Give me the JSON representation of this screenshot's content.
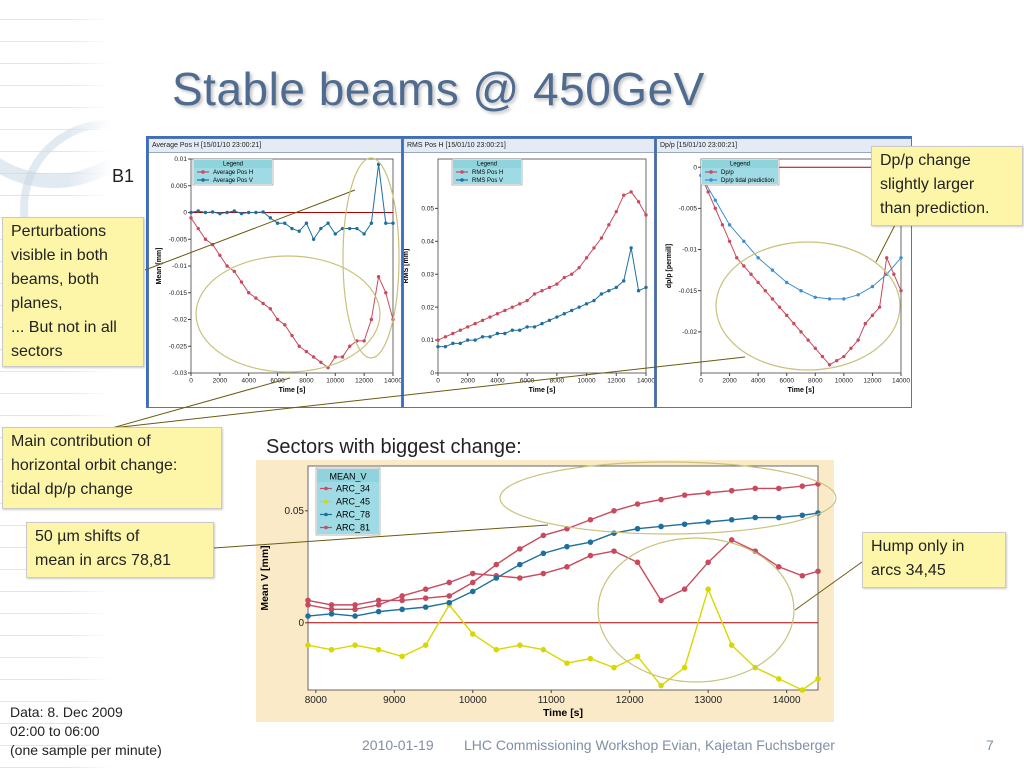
{
  "slide": {
    "title": "Stable beams @ 450GeV",
    "beam_label": "B1",
    "sectors_heading": "Sectors with biggest change:",
    "data_note": [
      "Data: 8. Dec 2009",
      "02:00 to 06:00",
      "(one sample per minute)"
    ],
    "footer": {
      "date": "2010-01-19",
      "event": "LHC Commissioning Workshop Evian, Kajetan Fuchsberger",
      "page": "7"
    }
  },
  "callouts": {
    "perturbations": [
      "Perturbations",
      "visible in both",
      "beams, both",
      "planes,",
      "... But not in all",
      "sectors"
    ],
    "dpp_change": [
      "Dp/p change",
      "slightly larger",
      "than prediction."
    ],
    "main_contribution": [
      "Main contribution of",
      "horizontal orbit change:",
      "tidal dp/p change"
    ],
    "shifts": [
      "50  µm shifts of",
      "mean in arcs 78,81"
    ],
    "hump": [
      "Hump only in",
      "arcs 34,45"
    ]
  },
  "colors": {
    "red_series": "#c94a5e",
    "blue_series": "#1f6f9e",
    "yellow_series": "#d8d800",
    "ref_line": "#b00000",
    "prediction": "#3d8ecf"
  },
  "chart_data": [
    {
      "type": "line",
      "title": "Average Pos H  [15/01/10 23:00:21]",
      "xlabel": "Time [s]",
      "ylabel": "Mean [mm]",
      "xlim": [
        0,
        14000
      ],
      "ylim": [
        -0.03,
        0.01
      ],
      "xticks": [
        "0",
        "2000",
        "4000",
        "6000",
        "8000",
        "10000",
        "12000",
        "14000"
      ],
      "yticks": [
        "0.01",
        "0.005",
        "0",
        "-0.005",
        "-0.01",
        "-0.015",
        "-0.02",
        "-0.025",
        "-0.03"
      ],
      "legend_title": "Legend",
      "series": [
        {
          "name": "Average Pos H",
          "color": "#c94a5e",
          "x": [
            0,
            500,
            1000,
            1500,
            2000,
            2500,
            3000,
            3500,
            4000,
            4500,
            5000,
            5500,
            6000,
            6500,
            7000,
            7500,
            8000,
            8500,
            9000,
            9500,
            10000,
            10500,
            11000,
            11500,
            12000,
            12500,
            13000,
            13500,
            14000
          ],
          "y": [
            -0.001,
            -0.003,
            -0.005,
            -0.006,
            -0.008,
            -0.01,
            -0.011,
            -0.013,
            -0.015,
            -0.016,
            -0.017,
            -0.018,
            -0.02,
            -0.021,
            -0.023,
            -0.025,
            -0.026,
            -0.027,
            -0.028,
            -0.029,
            -0.027,
            -0.027,
            -0.025,
            -0.024,
            -0.024,
            -0.02,
            -0.012,
            -0.015,
            -0.02
          ]
        },
        {
          "name": "Average Pos V",
          "color": "#1f6f9e",
          "x": [
            0,
            500,
            1000,
            1500,
            2000,
            2500,
            3000,
            3500,
            4000,
            4500,
            5000,
            5500,
            6000,
            6500,
            7000,
            7500,
            8000,
            8500,
            9000,
            9500,
            10000,
            10500,
            11000,
            11500,
            12000,
            12500,
            13000,
            13500,
            14000
          ],
          "y": [
            0.0,
            0.0003,
            0.0,
            0.0001,
            -0.0002,
            0.0,
            0.0003,
            -0.0002,
            0.0,
            0.0,
            0.0001,
            -0.001,
            -0.002,
            -0.002,
            -0.003,
            -0.0035,
            -0.002,
            -0.005,
            -0.003,
            -0.002,
            -0.004,
            -0.003,
            -0.003,
            -0.003,
            -0.004,
            -0.002,
            0.009,
            -0.002,
            -0.002
          ]
        }
      ]
    },
    {
      "type": "line",
      "title": "RMS Pos H  [15/01/10 23:00:21]",
      "xlabel": "Time [s]",
      "ylabel": "RMS [mm]",
      "xlim": [
        0,
        14000
      ],
      "ylim": [
        0,
        0.065
      ],
      "xticks": [
        "0",
        "2000",
        "4000",
        "6000",
        "8000",
        "10000",
        "12000",
        "14000"
      ],
      "yticks": [
        "0.05",
        "0.04",
        "0.03",
        "0.02",
        "0.01",
        "0"
      ],
      "legend_title": "Legend",
      "series": [
        {
          "name": "RMS Pos H",
          "color": "#c94a5e",
          "x": [
            0,
            500,
            1000,
            1500,
            2000,
            2500,
            3000,
            3500,
            4000,
            4500,
            5000,
            5500,
            6000,
            6500,
            7000,
            7500,
            8000,
            8500,
            9000,
            9500,
            10000,
            10500,
            11000,
            11500,
            12000,
            12500,
            13000,
            13500,
            14000
          ],
          "y": [
            0.01,
            0.011,
            0.012,
            0.013,
            0.014,
            0.015,
            0.016,
            0.017,
            0.018,
            0.019,
            0.02,
            0.021,
            0.022,
            0.024,
            0.025,
            0.026,
            0.027,
            0.029,
            0.03,
            0.032,
            0.035,
            0.038,
            0.041,
            0.045,
            0.049,
            0.054,
            0.055,
            0.052,
            0.048
          ]
        },
        {
          "name": "RMS Pos V",
          "color": "#1f6f9e",
          "x": [
            0,
            500,
            1000,
            1500,
            2000,
            2500,
            3000,
            3500,
            4000,
            4500,
            5000,
            5500,
            6000,
            6500,
            7000,
            7500,
            8000,
            8500,
            9000,
            9500,
            10000,
            10500,
            11000,
            11500,
            12000,
            12500,
            13000,
            13500,
            14000
          ],
          "y": [
            0.008,
            0.008,
            0.009,
            0.009,
            0.01,
            0.01,
            0.011,
            0.011,
            0.012,
            0.012,
            0.013,
            0.013,
            0.014,
            0.014,
            0.015,
            0.016,
            0.017,
            0.018,
            0.019,
            0.02,
            0.021,
            0.022,
            0.024,
            0.025,
            0.026,
            0.028,
            0.038,
            0.025,
            0.026
          ]
        }
      ]
    },
    {
      "type": "line",
      "title": "Dp/p  [15/01/10 23:00:21]",
      "xlabel": "Time [s]",
      "ylabel": "dp/p [permill]",
      "xlim": [
        0,
        14000
      ],
      "ylim": [
        -0.025,
        0.001
      ],
      "xticks": [
        "0",
        "2000",
        "4000",
        "6000",
        "8000",
        "10000",
        "12000",
        "14000"
      ],
      "yticks": [
        "0",
        "-0.005",
        "-0.01",
        "-0.015",
        "-0.02"
      ],
      "legend_title": "Legend",
      "series": [
        {
          "name": "Dp/p",
          "color": "#c94a5e",
          "x": [
            0,
            500,
            1000,
            1500,
            2000,
            2500,
            3000,
            3500,
            4000,
            4500,
            5000,
            5500,
            6000,
            6500,
            7000,
            7500,
            8000,
            8500,
            9000,
            9500,
            10000,
            10500,
            11000,
            11500,
            12000,
            12500,
            13000,
            13500,
            14000
          ],
          "y": [
            -0.001,
            -0.003,
            -0.005,
            -0.007,
            -0.009,
            -0.011,
            -0.012,
            -0.013,
            -0.014,
            -0.015,
            -0.016,
            -0.017,
            -0.018,
            -0.019,
            -0.02,
            -0.021,
            -0.022,
            -0.023,
            -0.024,
            -0.0235,
            -0.023,
            -0.022,
            -0.021,
            -0.019,
            -0.018,
            -0.017,
            -0.011,
            -0.013,
            -0.015
          ]
        },
        {
          "name": "Dp/p tidal prediction",
          "color": "#3d8ecf",
          "x": [
            0,
            1000,
            2000,
            3000,
            4000,
            5000,
            6000,
            7000,
            8000,
            9000,
            10000,
            11000,
            12000,
            13000,
            14000
          ],
          "y": [
            -0.001,
            -0.004,
            -0.007,
            -0.009,
            -0.011,
            -0.0125,
            -0.014,
            -0.015,
            -0.0158,
            -0.016,
            -0.016,
            -0.0155,
            -0.0145,
            -0.013,
            -0.011
          ]
        }
      ]
    },
    {
      "type": "line",
      "xlabel": "Time [s]",
      "ylabel": "Mean V [mm]",
      "xlim": [
        7900,
        14400
      ],
      "ylim": [
        -0.03,
        0.07
      ],
      "xticks": [
        "8000",
        "9000",
        "10000",
        "11000",
        "12000",
        "13000",
        "14000"
      ],
      "yticks": [
        "0.05",
        "0"
      ],
      "legend_title": "MEAN_V",
      "series": [
        {
          "name": "ARC_34",
          "color": "#c94a5e",
          "x": [
            7900,
            8200,
            8500,
            8800,
            9100,
            9400,
            9700,
            10000,
            10300,
            10600,
            10900,
            11200,
            11500,
            11800,
            12100,
            12400,
            12700,
            13000,
            13300,
            13600,
            13900,
            14200,
            14400
          ],
          "y": [
            0.008,
            0.006,
            0.006,
            0.008,
            0.012,
            0.015,
            0.018,
            0.022,
            0.021,
            0.02,
            0.022,
            0.025,
            0.03,
            0.032,
            0.027,
            0.01,
            0.015,
            0.027,
            0.037,
            0.032,
            0.025,
            0.021,
            0.023
          ]
        },
        {
          "name": "ARC_45",
          "color": "#d8d800",
          "x": [
            7900,
            8200,
            8500,
            8800,
            9100,
            9400,
            9700,
            10000,
            10300,
            10600,
            10900,
            11200,
            11500,
            11800,
            12100,
            12400,
            12700,
            13000,
            13300,
            13600,
            13900,
            14200,
            14400
          ],
          "y": [
            -0.01,
            -0.012,
            -0.01,
            -0.012,
            -0.015,
            -0.01,
            0.008,
            -0.005,
            -0.012,
            -0.01,
            -0.012,
            -0.018,
            -0.016,
            -0.02,
            -0.015,
            -0.028,
            -0.02,
            0.015,
            -0.01,
            -0.02,
            -0.025,
            -0.03,
            -0.025
          ]
        },
        {
          "name": "ARC_78",
          "color": "#1f6f9e",
          "x": [
            7900,
            8200,
            8500,
            8800,
            9100,
            9400,
            9700,
            10000,
            10300,
            10600,
            10900,
            11200,
            11500,
            11800,
            12100,
            12400,
            12700,
            13000,
            13300,
            13600,
            13900,
            14200,
            14400
          ],
          "y": [
            0.003,
            0.004,
            0.003,
            0.005,
            0.006,
            0.007,
            0.009,
            0.014,
            0.02,
            0.026,
            0.031,
            0.034,
            0.036,
            0.04,
            0.042,
            0.043,
            0.044,
            0.045,
            0.046,
            0.047,
            0.047,
            0.048,
            0.049
          ]
        },
        {
          "name": "ARC_81",
          "color": "#c94a5e",
          "x": [
            7900,
            8200,
            8500,
            8800,
            9100,
            9400,
            9700,
            10000,
            10300,
            10600,
            10900,
            11200,
            11500,
            11800,
            12100,
            12400,
            12700,
            13000,
            13300,
            13600,
            13900,
            14200,
            14400
          ],
          "y": [
            0.01,
            0.008,
            0.008,
            0.01,
            0.01,
            0.011,
            0.012,
            0.018,
            0.026,
            0.033,
            0.039,
            0.042,
            0.046,
            0.05,
            0.053,
            0.055,
            0.057,
            0.058,
            0.059,
            0.06,
            0.06,
            0.061,
            0.062
          ]
        }
      ]
    }
  ]
}
